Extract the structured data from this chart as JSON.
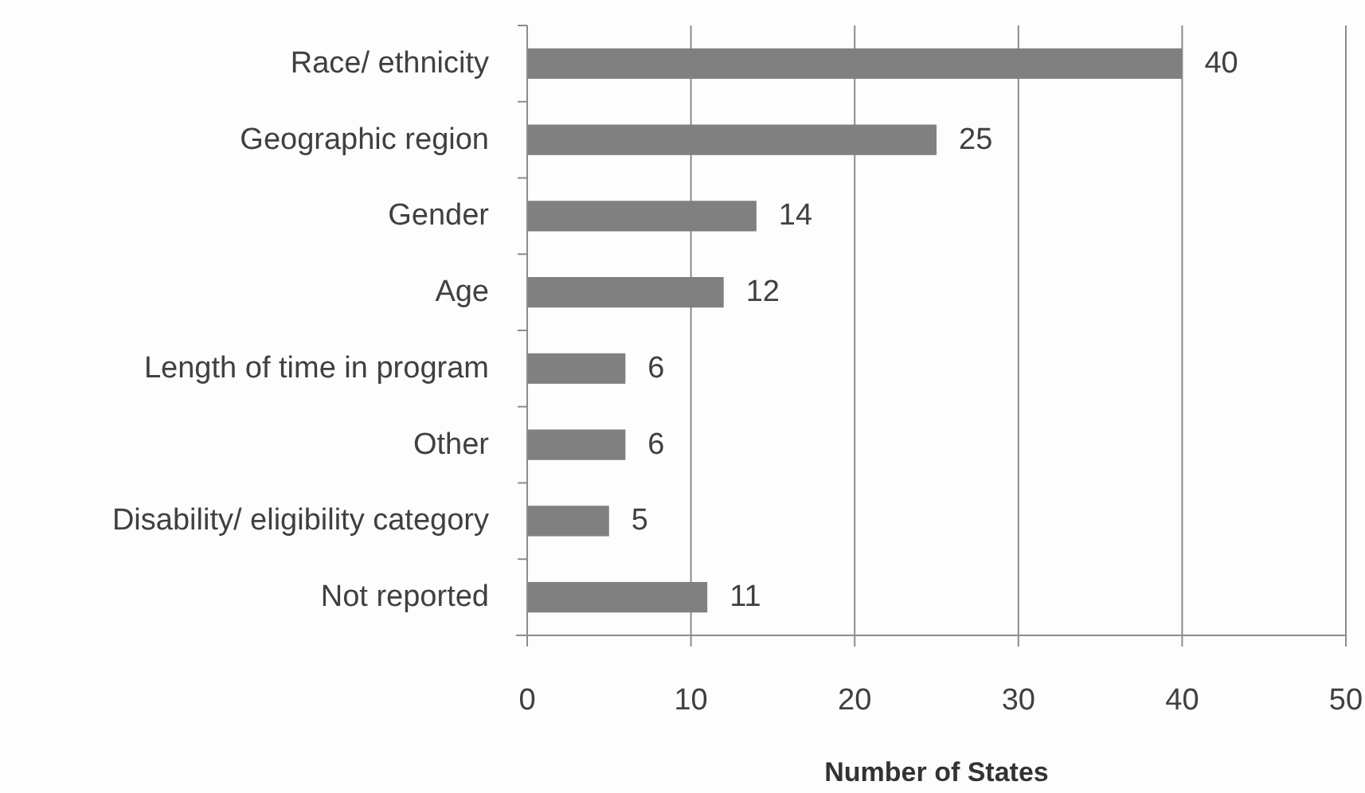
{
  "chart_data": {
    "type": "bar",
    "orientation": "horizontal",
    "xlabel": "Number of States",
    "categories": [
      "Race/ ethnicity",
      "Geographic region",
      "Gender",
      "Age",
      "Length of time in program",
      "Other",
      "Disability/ eligibility category",
      "Not reported"
    ],
    "values": [
      40,
      25,
      14,
      12,
      6,
      6,
      5,
      11
    ],
    "color": "#808080",
    "xlim": [
      0,
      50
    ],
    "xticks": [
      0,
      10,
      20,
      30,
      40,
      50
    ],
    "grid": "x",
    "data_labels": true
  }
}
